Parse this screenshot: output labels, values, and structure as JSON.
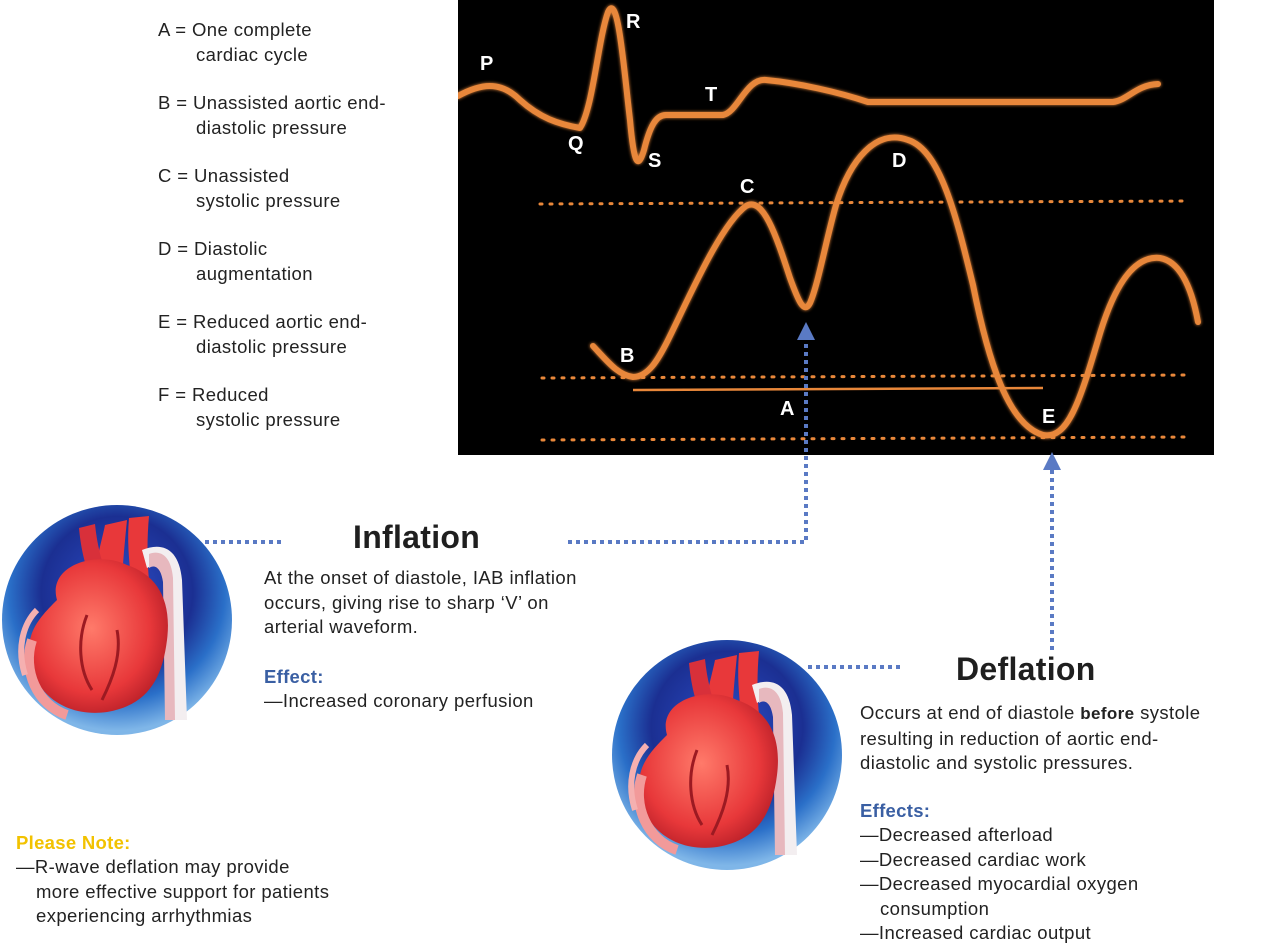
{
  "legend": [
    {
      "line1": "A = One complete",
      "line2": "cardiac cycle"
    },
    {
      "line1": "B = Unassisted aortic end-",
      "line2": "diastolic pressure"
    },
    {
      "line1": "C = Unassisted",
      "line2": "systolic pressure"
    },
    {
      "line1": "D = Diastolic",
      "line2": "augmentation"
    },
    {
      "line1": "E = Reduced aortic end-",
      "line2": "diastolic pressure"
    },
    {
      "line1": "F = Reduced",
      "line2": "systolic pressure"
    }
  ],
  "waveform_labels": {
    "ecg": {
      "P": "P",
      "Q": "Q",
      "R": "R",
      "S": "S",
      "T": "T"
    },
    "arterial": {
      "A": "A",
      "B": "B",
      "C": "C",
      "D": "D",
      "E": "E"
    }
  },
  "inflation": {
    "title": "Inflation",
    "body": [
      "At the onset of diastole, IAB inflation",
      "occurs, giving rise to sharp ‘V’ on",
      "arterial waveform."
    ],
    "effect_label": "Effect:",
    "effects": [
      "—Increased coronary perfusion"
    ]
  },
  "deflation": {
    "title": "Deflation",
    "body_pre": "Occurs at end of diastole ",
    "body_emph": "before",
    "body_post": " systole",
    "body": [
      "resulting in reduction of aortic end-",
      "diastolic and systolic pressures."
    ],
    "effects_label": "Effects:",
    "effects": [
      "—Decreased afterload",
      "—Decreased cardiac work",
      "—Decreased myocardial oxygen",
      "consumption",
      "—Increased cardiac output"
    ]
  },
  "note": {
    "label": "Please Note:",
    "lines": [
      "—R-wave deflation may provide",
      "more effective support for patients",
      "experiencing arrhythmias"
    ]
  },
  "colors": {
    "trace": "#e8873a",
    "screen": "#000000",
    "connector": "#5a7ac4",
    "effect_label": "#3a5fa3",
    "note_label": "#f2c200"
  },
  "icons": {
    "heart_illustrations": "heart-aorta-balloon-icon",
    "arrows": "arrow-up-icon"
  }
}
